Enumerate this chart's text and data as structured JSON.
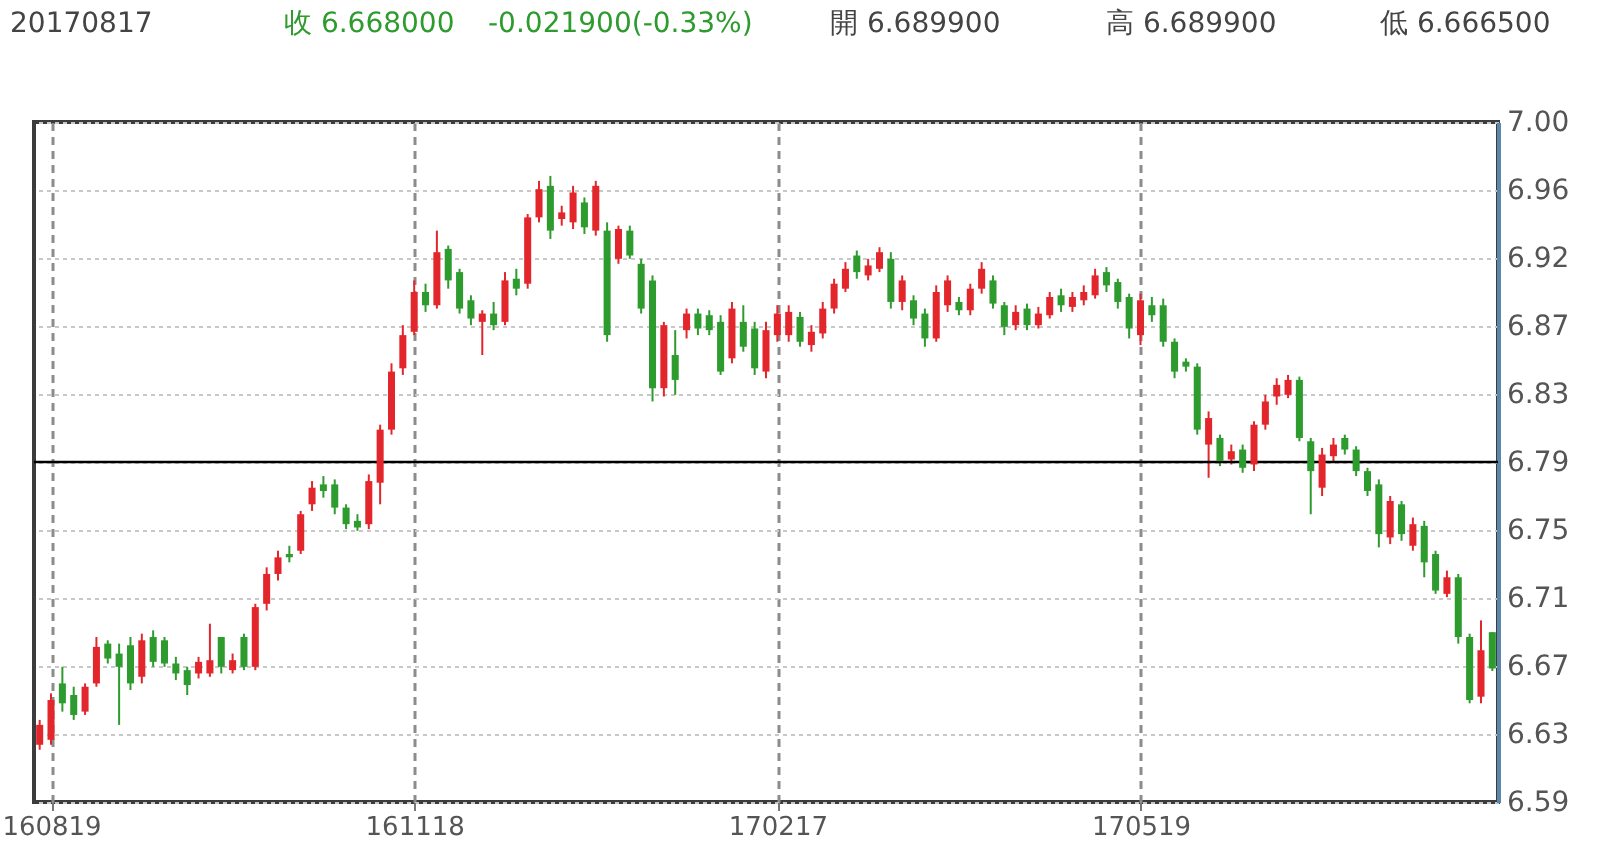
{
  "chart_data": {
    "type": "candlestick",
    "annotations": [
      "20170817",
      "收 6.668000",
      "-0.021900(-0.33%)",
      "開 6.689900",
      "高 6.689900",
      "低 6.666500"
    ],
    "categories": [
      null,
      "160819",
      null,
      null,
      null,
      null,
      null,
      null,
      null,
      null,
      null,
      null,
      null,
      null,
      null,
      null,
      null,
      null,
      null,
      null,
      null,
      null,
      null,
      null,
      null,
      null,
      null,
      null,
      null,
      null,
      null,
      null,
      null,
      "161118",
      null,
      null,
      null,
      null,
      null,
      null,
      null,
      null,
      null,
      null,
      null,
      null,
      null,
      null,
      null,
      null,
      null,
      null,
      null,
      null,
      null,
      null,
      null,
      null,
      null,
      null,
      null,
      null,
      null,
      null,
      null,
      "170217",
      null,
      null,
      null,
      null,
      null,
      null,
      null,
      null,
      null,
      null,
      null,
      null,
      null,
      null,
      null,
      null,
      null,
      null,
      null,
      null,
      null,
      null,
      null,
      null,
      null,
      null,
      null,
      null,
      null,
      null,
      null,
      "170519",
      null,
      null,
      null,
      null,
      null,
      null,
      null,
      null,
      null,
      null,
      null,
      null,
      null,
      null,
      null,
      null,
      null,
      null,
      null,
      null,
      null,
      null,
      null,
      null,
      null,
      null,
      null,
      null,
      null,
      null,
      null
    ],
    "ohlc": [
      [
        6.622,
        6.637,
        6.619,
        6.634
      ],
      [
        6.625,
        6.653,
        6.622,
        6.649
      ],
      [
        6.659,
        6.669,
        6.642,
        6.647
      ],
      [
        6.652,
        6.657,
        6.637,
        6.64
      ],
      [
        6.642,
        6.659,
        6.64,
        6.657
      ],
      [
        6.659,
        6.687,
        6.657,
        6.681
      ],
      [
        6.683,
        6.685,
        6.671,
        6.674
      ],
      [
        6.677,
        6.683,
        6.634,
        6.669
      ],
      [
        6.682,
        6.687,
        6.655,
        6.659
      ],
      [
        6.663,
        6.689,
        6.659,
        6.685
      ],
      [
        6.687,
        6.691,
        6.669,
        6.672
      ],
      [
        6.685,
        6.687,
        6.669,
        6.671
      ],
      [
        6.671,
        6.675,
        6.661,
        6.665
      ],
      [
        6.667,
        6.669,
        6.652,
        6.658
      ],
      [
        6.665,
        6.675,
        6.662,
        6.672
      ],
      [
        6.665,
        6.695,
        6.663,
        6.673
      ],
      [
        6.687,
        6.687,
        6.665,
        6.669
      ],
      [
        6.667,
        6.677,
        6.665,
        6.673
      ],
      [
        6.687,
        6.689,
        6.667,
        6.669
      ],
      [
        6.669,
        6.707,
        6.667,
        6.705
      ],
      [
        6.707,
        6.729,
        6.703,
        6.725
      ],
      [
        6.725,
        6.739,
        6.721,
        6.735
      ],
      [
        6.737,
        6.742,
        6.732,
        6.735
      ],
      [
        6.739,
        6.763,
        6.737,
        6.761
      ],
      [
        6.767,
        6.781,
        6.763,
        6.777
      ],
      [
        6.779,
        6.784,
        6.771,
        6.775
      ],
      [
        6.779,
        6.782,
        6.761,
        6.765
      ],
      [
        6.765,
        6.767,
        6.752,
        6.755
      ],
      [
        6.757,
        6.761,
        6.751,
        6.753
      ],
      [
        6.755,
        6.785,
        6.752,
        6.781
      ],
      [
        6.78,
        6.815,
        6.767,
        6.812
      ],
      [
        6.812,
        6.852,
        6.809,
        6.847
      ],
      [
        6.849,
        6.875,
        6.845,
        6.869
      ],
      [
        6.871,
        6.902,
        6.869,
        6.895
      ],
      [
        6.895,
        6.9,
        6.883,
        6.887
      ],
      [
        6.887,
        6.932,
        6.885,
        6.919
      ],
      [
        6.921,
        6.923,
        6.897,
        6.902
      ],
      [
        6.907,
        6.909,
        6.882,
        6.885
      ],
      [
        6.89,
        6.893,
        6.875,
        6.879
      ],
      [
        6.877,
        6.884,
        6.857,
        6.882
      ],
      [
        6.882,
        6.889,
        6.872,
        6.875
      ],
      [
        6.877,
        6.907,
        6.875,
        6.902
      ],
      [
        6.903,
        6.909,
        6.893,
        6.897
      ],
      [
        6.9,
        6.942,
        6.897,
        6.94
      ],
      [
        6.94,
        6.962,
        6.937,
        6.957
      ],
      [
        6.959,
        6.965,
        6.927,
        6.932
      ],
      [
        6.939,
        6.947,
        6.935,
        6.943
      ],
      [
        6.937,
        6.959,
        6.933,
        6.955
      ],
      [
        6.949,
        6.952,
        6.93,
        6.934
      ],
      [
        6.932,
        6.962,
        6.929,
        6.959
      ],
      [
        6.932,
        6.937,
        6.865,
        6.869
      ],
      [
        6.915,
        6.935,
        6.912,
        6.933
      ],
      [
        6.932,
        6.935,
        6.915,
        6.917
      ],
      [
        6.912,
        6.915,
        6.882,
        6.885
      ],
      [
        6.902,
        6.905,
        6.829,
        6.837
      ],
      [
        6.837,
        6.877,
        6.832,
        6.875
      ],
      [
        6.857,
        6.872,
        6.833,
        6.842
      ],
      [
        6.872,
        6.885,
        6.867,
        6.882
      ],
      [
        6.882,
        6.885,
        6.869,
        6.873
      ],
      [
        6.881,
        6.884,
        6.869,
        6.872
      ],
      [
        6.877,
        6.881,
        6.845,
        6.847
      ],
      [
        6.855,
        6.889,
        6.852,
        6.885
      ],
      [
        6.877,
        6.887,
        6.859,
        6.862
      ],
      [
        6.873,
        6.877,
        6.845,
        6.849
      ],
      [
        6.847,
        6.877,
        6.843,
        6.872
      ],
      [
        6.869,
        6.887,
        6.865,
        6.882
      ],
      [
        6.869,
        6.887,
        6.865,
        6.883
      ],
      [
        6.88,
        6.883,
        6.862,
        6.865
      ],
      [
        6.863,
        6.875,
        6.859,
        6.871
      ],
      [
        6.87,
        6.889,
        6.867,
        6.885
      ],
      [
        6.885,
        6.903,
        6.882,
        6.9
      ],
      [
        6.897,
        6.913,
        6.895,
        6.909
      ],
      [
        6.917,
        6.92,
        6.903,
        6.907
      ],
      [
        6.905,
        6.915,
        6.902,
        6.911
      ],
      [
        6.909,
        6.922,
        6.907,
        6.919
      ],
      [
        6.915,
        6.919,
        6.885,
        6.889
      ],
      [
        6.889,
        6.905,
        6.884,
        6.902
      ],
      [
        6.89,
        6.893,
        6.875,
        6.879
      ],
      [
        6.882,
        6.885,
        6.862,
        6.867
      ],
      [
        6.867,
        6.899,
        6.865,
        6.895
      ],
      [
        6.887,
        6.905,
        6.883,
        6.902
      ],
      [
        6.889,
        6.892,
        6.881,
        6.884
      ],
      [
        6.884,
        6.9,
        6.881,
        6.897
      ],
      [
        6.897,
        6.913,
        6.894,
        6.909
      ],
      [
        6.902,
        6.905,
        6.885,
        6.888
      ],
      [
        6.887,
        6.889,
        6.869,
        6.874
      ],
      [
        6.875,
        6.887,
        6.872,
        6.883
      ],
      [
        6.885,
        6.888,
        6.872,
        6.875
      ],
      [
        6.875,
        6.886,
        6.873,
        6.882
      ],
      [
        6.881,
        6.895,
        6.879,
        6.892
      ],
      [
        6.893,
        6.897,
        6.883,
        6.887
      ],
      [
        6.886,
        6.895,
        6.883,
        6.892
      ],
      [
        6.89,
        6.899,
        6.887,
        6.895
      ],
      [
        6.893,
        6.909,
        6.891,
        6.905
      ],
      [
        6.907,
        6.91,
        6.895,
        6.899
      ],
      [
        6.901,
        6.903,
        6.885,
        6.889
      ],
      [
        6.892,
        6.894,
        6.867,
        6.873
      ],
      [
        6.869,
        6.894,
        6.863,
        6.89
      ],
      [
        6.887,
        6.892,
        6.877,
        6.881
      ],
      [
        6.887,
        6.891,
        6.862,
        6.865
      ],
      [
        6.865,
        6.867,
        6.843,
        6.847
      ],
      [
        6.853,
        6.855,
        6.847,
        6.85
      ],
      [
        6.85,
        6.852,
        6.809,
        6.812
      ],
      [
        6.803,
        6.823,
        6.783,
        6.819
      ],
      [
        6.807,
        6.809,
        6.79,
        6.793
      ],
      [
        6.794,
        6.803,
        6.791,
        6.799
      ],
      [
        6.8,
        6.803,
        6.786,
        6.789
      ],
      [
        6.791,
        6.817,
        6.787,
        6.815
      ],
      [
        6.815,
        6.833,
        6.812,
        6.829
      ],
      [
        6.832,
        6.843,
        6.827,
        6.839
      ],
      [
        6.833,
        6.845,
        6.831,
        6.842
      ],
      [
        6.842,
        6.844,
        6.805,
        6.807
      ],
      [
        6.805,
        6.807,
        6.761,
        6.787
      ],
      [
        6.777,
        6.801,
        6.772,
        6.797
      ],
      [
        6.796,
        6.807,
        6.793,
        6.803
      ],
      [
        6.807,
        6.809,
        6.797,
        6.8
      ],
      [
        6.8,
        6.802,
        6.784,
        6.787
      ],
      [
        6.787,
        6.789,
        6.772,
        6.775
      ],
      [
        6.779,
        6.782,
        6.741,
        6.749
      ],
      [
        6.747,
        6.772,
        6.743,
        6.769
      ],
      [
        6.767,
        6.769,
        6.745,
        6.749
      ],
      [
        6.742,
        6.759,
        6.739,
        6.755
      ],
      [
        6.754,
        6.757,
        6.723,
        6.732
      ],
      [
        6.737,
        6.739,
        6.713,
        6.715
      ],
      [
        6.713,
        6.727,
        6.711,
        6.723
      ],
      [
        6.723,
        6.725,
        6.683,
        6.687
      ],
      [
        6.687,
        6.689,
        6.647,
        6.649
      ],
      [
        6.651,
        6.697,
        6.647,
        6.679
      ],
      [
        6.6899,
        6.6899,
        6.6665,
        6.668
      ]
    ],
    "colors": [
      "#e3262b",
      "#e3262b",
      "#2e9b2e",
      "#2e9b2e",
      "#e3262b",
      "#e3262b",
      "#2e9b2e",
      "#2e9b2e",
      "#2e9b2e",
      "#e3262b",
      "#2e9b2e",
      "#2e9b2e",
      "#2e9b2e",
      "#2e9b2e",
      "#e3262b",
      "#e3262b",
      "#2e9b2e",
      "#e3262b",
      "#2e9b2e",
      "#e3262b",
      "#e3262b",
      "#e3262b",
      "#2e9b2e",
      "#e3262b",
      "#e3262b",
      "#2e9b2e",
      "#2e9b2e",
      "#2e9b2e",
      "#2e9b2e",
      "#e3262b",
      "#e3262b",
      "#e3262b",
      "#e3262b",
      "#e3262b",
      "#2e9b2e",
      "#e3262b",
      "#2e9b2e",
      "#2e9b2e",
      "#2e9b2e",
      "#e3262b",
      "#2e9b2e",
      "#e3262b",
      "#2e9b2e",
      "#e3262b",
      "#e3262b",
      "#2e9b2e",
      "#e3262b",
      "#e3262b",
      "#2e9b2e",
      "#e3262b",
      "#2e9b2e",
      "#e3262b",
      "#2e9b2e",
      "#2e9b2e",
      "#2e9b2e",
      "#e3262b",
      "#2e9b2e",
      "#e3262b",
      "#2e9b2e",
      "#2e9b2e",
      "#2e9b2e",
      "#e3262b",
      "#2e9b2e",
      "#2e9b2e",
      "#e3262b",
      "#e3262b",
      "#e3262b",
      "#2e9b2e",
      "#e3262b",
      "#e3262b",
      "#e3262b",
      "#e3262b",
      "#2e9b2e",
      "#e3262b",
      "#e3262b",
      "#2e9b2e",
      "#e3262b",
      "#2e9b2e",
      "#2e9b2e",
      "#e3262b",
      "#e3262b",
      "#2e9b2e",
      "#e3262b",
      "#e3262b",
      "#2e9b2e",
      "#2e9b2e",
      "#e3262b",
      "#2e9b2e",
      "#e3262b",
      "#e3262b",
      "#2e9b2e",
      "#e3262b",
      "#e3262b",
      "#e3262b",
      "#2e9b2e",
      "#2e9b2e",
      "#2e9b2e",
      "#e3262b",
      "#2e9b2e",
      "#2e9b2e",
      "#2e9b2e",
      "#2e9b2e",
      "#2e9b2e",
      "#e3262b",
      "#2e9b2e",
      "#e3262b",
      "#2e9b2e",
      "#e3262b",
      "#e3262b",
      "#e3262b",
      "#e3262b",
      "#2e9b2e",
      "#2e9b2e",
      "#e3262b",
      "#e3262b",
      "#2e9b2e",
      "#2e9b2e",
      "#2e9b2e",
      "#2e9b2e",
      "#e3262b",
      "#2e9b2e",
      "#e3262b",
      "#2e9b2e",
      "#2e9b2e",
      "#e3262b",
      "#2e9b2e",
      "#2e9b2e",
      "#e3262b",
      "#2e9b2e"
    ],
    "ylim": [
      6.5875,
      6.9975
    ],
    "yticks": [
      {
        "value": 6.5875,
        "label": "6.59"
      },
      {
        "value": 6.6285,
        "label": "6.63"
      },
      {
        "value": 6.6695,
        "label": "6.67"
      },
      {
        "value": 6.7105,
        "label": "6.71"
      },
      {
        "value": 6.7515,
        "label": "6.75"
      },
      {
        "value": 6.7925,
        "label": "6.79"
      },
      {
        "value": 6.8335,
        "label": "6.83"
      },
      {
        "value": 6.8745,
        "label": "6.87"
      },
      {
        "value": 6.9155,
        "label": "6.92"
      },
      {
        "value": 6.9565,
        "label": "6.96"
      },
      {
        "value": 6.9975,
        "label": "7.00"
      }
    ],
    "grid": true,
    "ref_lines": [
      {
        "axis": "y",
        "value": 6.7925,
        "color": "#000000"
      }
    ]
  }
}
